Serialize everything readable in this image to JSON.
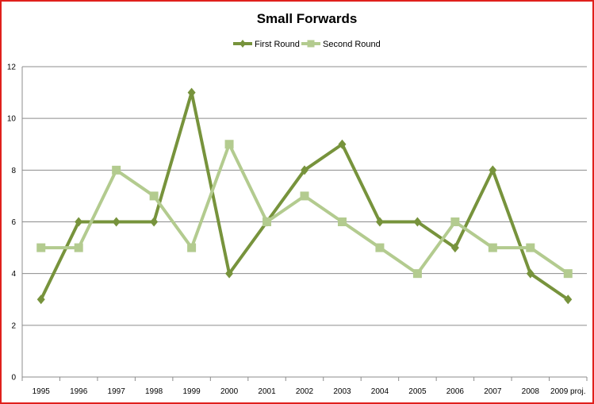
{
  "chart_data": {
    "type": "line",
    "title": "Small Forwards",
    "xlabel": "",
    "ylabel": "",
    "categories": [
      "1995",
      "1996",
      "1997",
      "1998",
      "1999",
      "2000",
      "2001",
      "2002",
      "2003",
      "2004",
      "2005",
      "2006",
      "2007",
      "2008",
      "2009 proj."
    ],
    "ylim": [
      0,
      12
    ],
    "yticks": [
      "0",
      "2",
      "4",
      "6",
      "8",
      "10",
      "12"
    ],
    "grid": true,
    "legend_position": "top",
    "series": [
      {
        "name": "First Round",
        "color": "#77933c",
        "marker": "diamond",
        "values": [
          3,
          6,
          6,
          6,
          11,
          4,
          6,
          8,
          9,
          6,
          6,
          5,
          8,
          4,
          3
        ]
      },
      {
        "name": "Second Round",
        "color": "#b3cb8f",
        "marker": "square",
        "values": [
          5,
          5,
          8,
          7,
          5,
          9,
          6,
          7,
          6,
          5,
          4,
          6,
          5,
          5,
          4
        ]
      }
    ]
  }
}
